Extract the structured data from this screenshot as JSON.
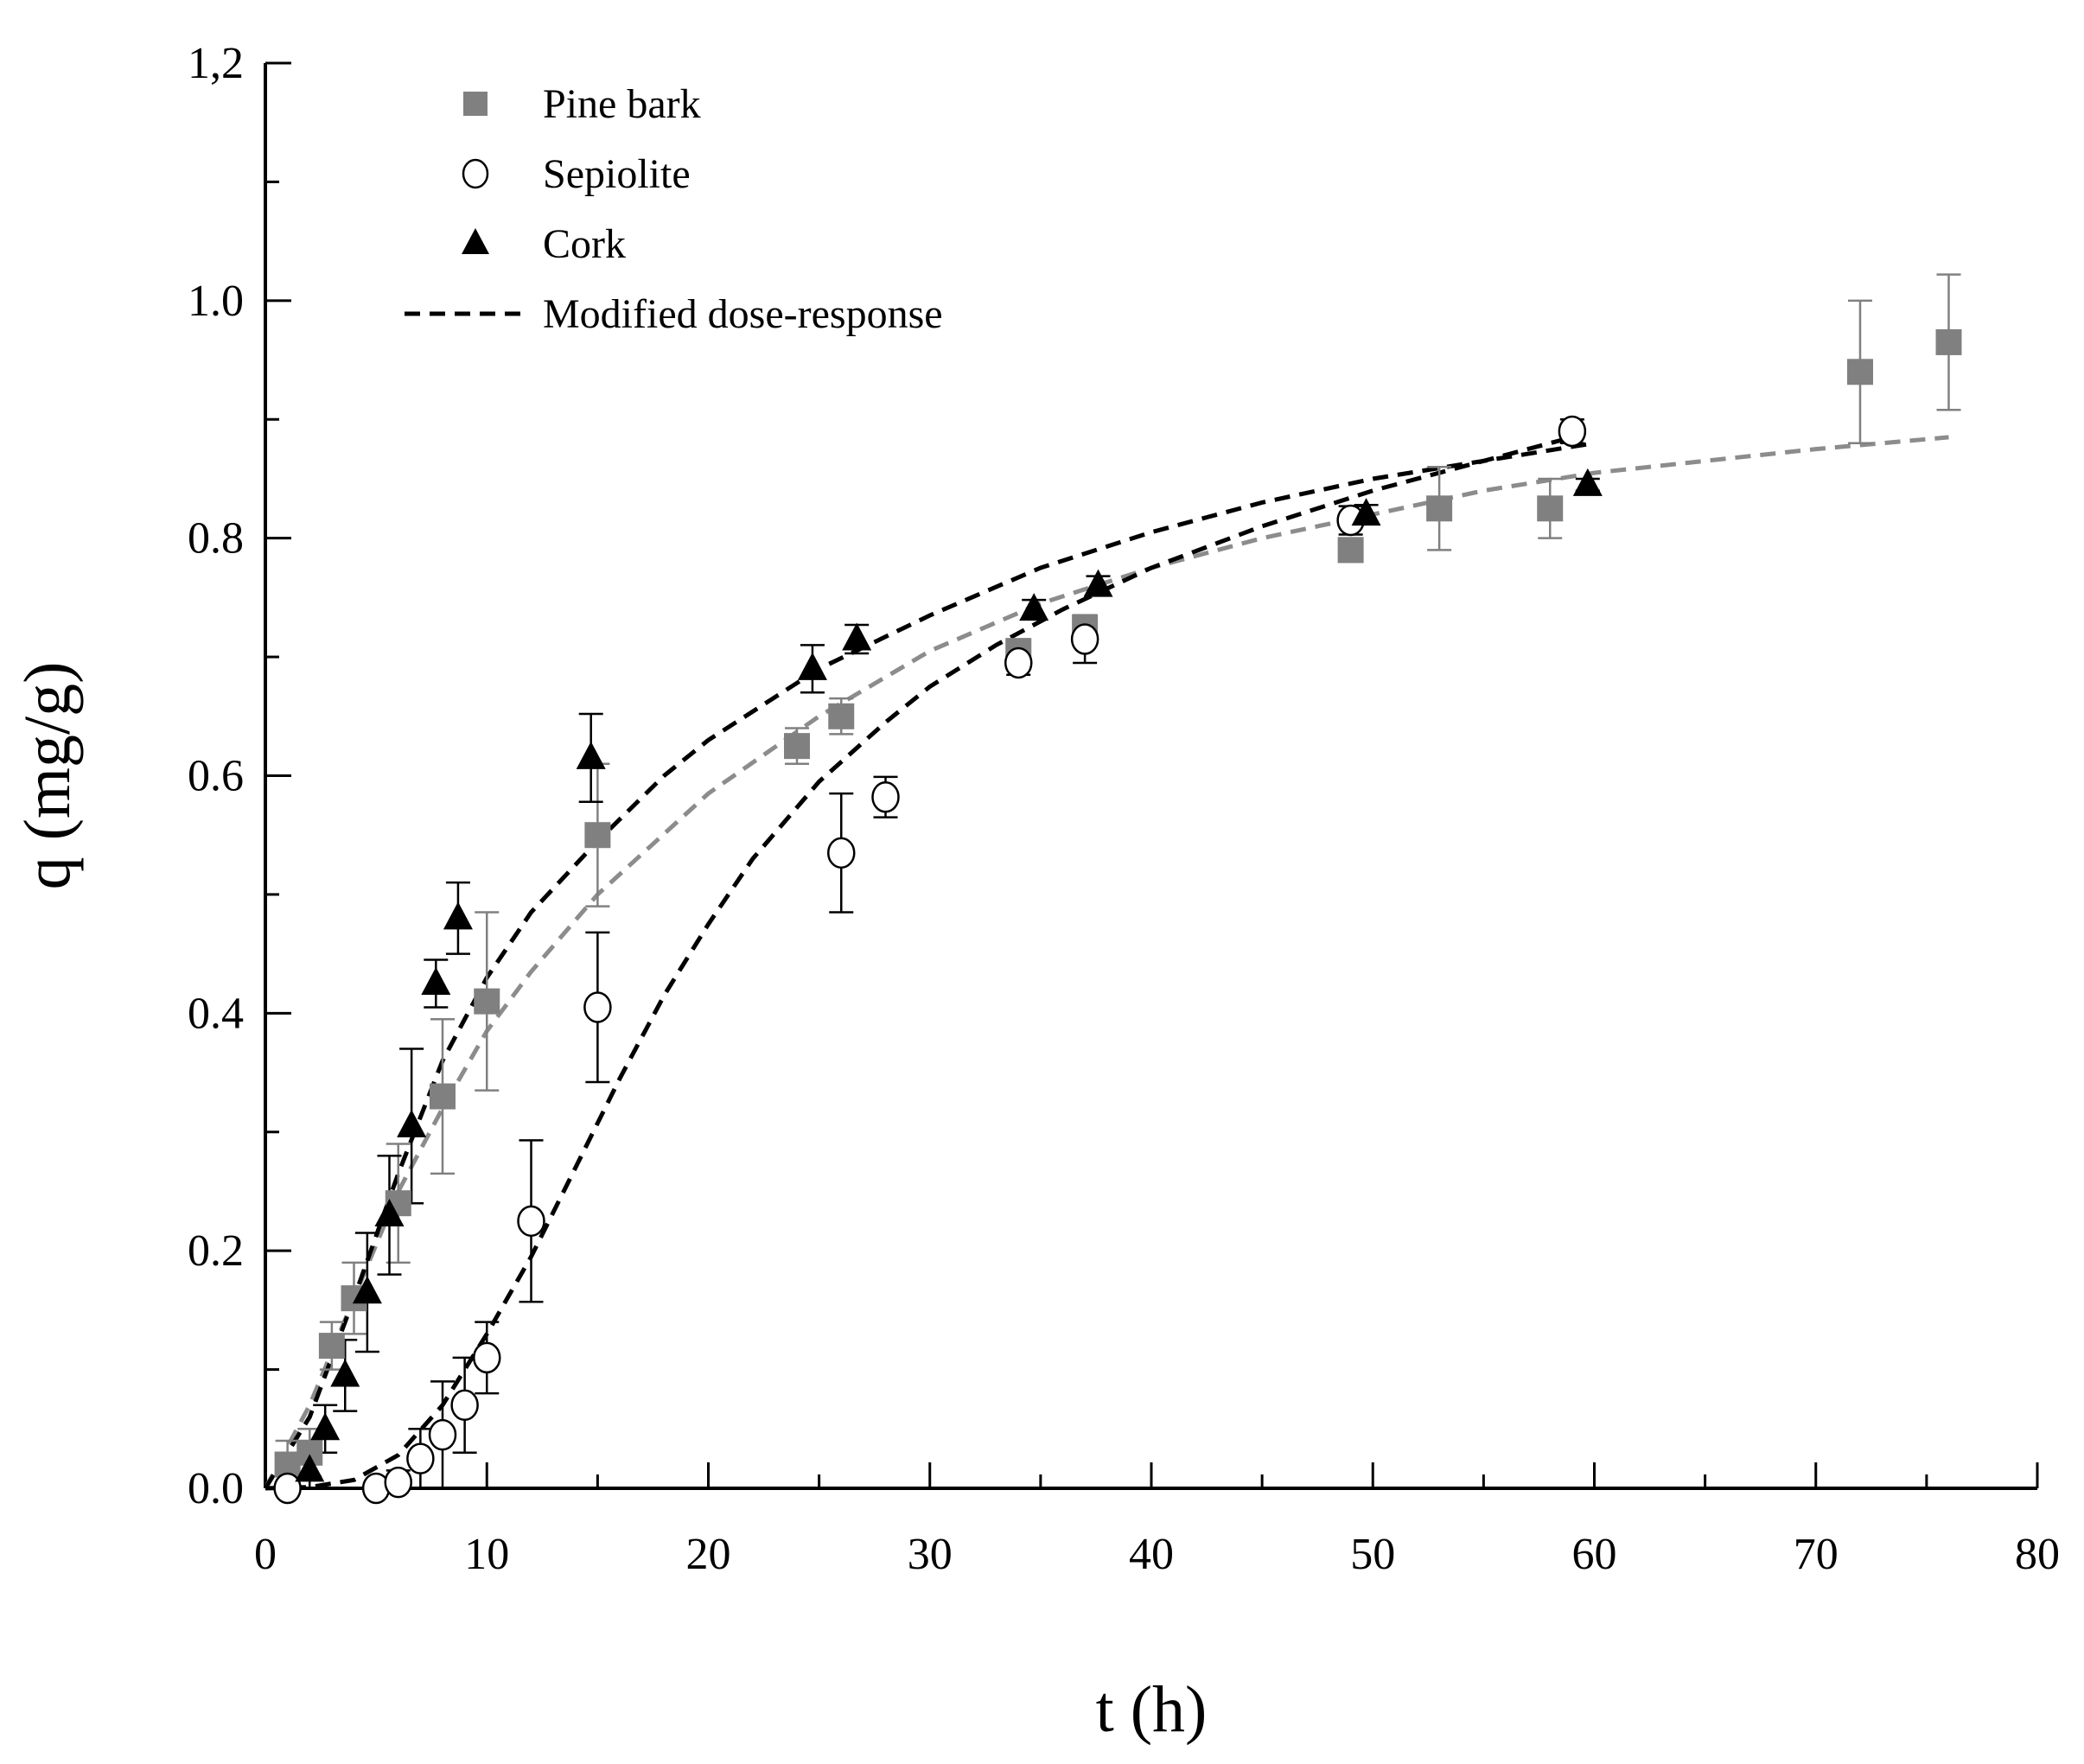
{
  "chart_data": {
    "type": "scatter",
    "title": "",
    "xlabel": "t (h)",
    "ylabel": "q (mg/g)",
    "xlim": [
      0,
      80
    ],
    "ylim": [
      0,
      1.2
    ],
    "x_ticks": [
      "0",
      "10",
      "20",
      "30",
      "40",
      "50",
      "60",
      "70",
      "80"
    ],
    "y_ticks": [
      "0.0",
      "0.2",
      "0.4",
      "0.6",
      "0.8",
      "1.0",
      "1,2"
    ],
    "grid": false,
    "legend_position": "top-left",
    "legend": [
      "Pine bark",
      "Sepiolite",
      "Cork",
      "Modified dose-response"
    ],
    "series": [
      {
        "name": "Pine bark",
        "marker": "square",
        "color": "#808080",
        "points": [
          {
            "x": 1,
            "y": 0.02,
            "err": 0.02
          },
          {
            "x": 2,
            "y": 0.03,
            "err": 0.02
          },
          {
            "x": 3,
            "y": 0.12,
            "err": 0.02
          },
          {
            "x": 4,
            "y": 0.16,
            "err": 0.03
          },
          {
            "x": 6,
            "y": 0.24,
            "err": 0.05
          },
          {
            "x": 8,
            "y": 0.33,
            "err": 0.065
          },
          {
            "x": 10,
            "y": 0.41,
            "err": 0.075
          },
          {
            "x": 15,
            "y": 0.55,
            "err": 0.06
          },
          {
            "x": 24,
            "y": 0.625,
            "err": 0.015
          },
          {
            "x": 26,
            "y": 0.65,
            "err": 0.015
          },
          {
            "x": 34,
            "y": 0.705,
            "err": 0.01
          },
          {
            "x": 37,
            "y": 0.725,
            "err": 0.01
          },
          {
            "x": 49,
            "y": 0.79,
            "err": 0.01
          },
          {
            "x": 53,
            "y": 0.825,
            "err": 0.035
          },
          {
            "x": 58,
            "y": 0.825,
            "err": 0.025
          },
          {
            "x": 72,
            "y": 0.94,
            "err": 0.06
          },
          {
            "x": 76,
            "y": 0.965,
            "err": 0.057
          }
        ]
      },
      {
        "name": "Sepiolite",
        "marker": "circle-open",
        "color": "#000000",
        "points": [
          {
            "x": 1,
            "y": 0.0,
            "err": 0.01
          },
          {
            "x": 5,
            "y": 0.0,
            "err": 0.0
          },
          {
            "x": 6,
            "y": 0.005,
            "err": 0.01
          },
          {
            "x": 7,
            "y": 0.025,
            "err": 0.025
          },
          {
            "x": 8,
            "y": 0.045,
            "err": 0.045
          },
          {
            "x": 9,
            "y": 0.07,
            "err": 0.04
          },
          {
            "x": 10,
            "y": 0.11,
            "err": 0.03
          },
          {
            "x": 12,
            "y": 0.225,
            "err": 0.068
          },
          {
            "x": 15,
            "y": 0.405,
            "err": 0.063
          },
          {
            "x": 26,
            "y": 0.535,
            "err": 0.05
          },
          {
            "x": 28,
            "y": 0.582,
            "err": 0.017
          },
          {
            "x": 34,
            "y": 0.695,
            "err": 0.01
          },
          {
            "x": 37,
            "y": 0.715,
            "err": 0.02
          },
          {
            "x": 49,
            "y": 0.815,
            "err": 0.012
          },
          {
            "x": 59,
            "y": 0.89,
            "err": 0.01
          }
        ]
      },
      {
        "name": "Cork",
        "marker": "triangle",
        "color": "#000000",
        "points": [
          {
            "x": 2,
            "y": 0.015,
            "err": 0.015
          },
          {
            "x": 2.7,
            "y": 0.05,
            "err": 0.02
          },
          {
            "x": 3.6,
            "y": 0.095,
            "err": 0.03
          },
          {
            "x": 4.6,
            "y": 0.165,
            "err": 0.05
          },
          {
            "x": 5.6,
            "y": 0.23,
            "err": 0.05
          },
          {
            "x": 6.6,
            "y": 0.305,
            "err": 0.065
          },
          {
            "x": 7.7,
            "y": 0.425,
            "err": 0.02
          },
          {
            "x": 8.7,
            "y": 0.48,
            "err": 0.03
          },
          {
            "x": 14.7,
            "y": 0.615,
            "err": 0.037
          },
          {
            "x": 24.7,
            "y": 0.69,
            "err": 0.02
          },
          {
            "x": 26.7,
            "y": 0.715,
            "err": 0.012
          },
          {
            "x": 34.7,
            "y": 0.74,
            "err": 0.008
          },
          {
            "x": 37.6,
            "y": 0.76,
            "err": 0.008
          },
          {
            "x": 49.7,
            "y": 0.82,
            "err": 0.008
          },
          {
            "x": 59.7,
            "y": 0.845,
            "err": 0.005
          }
        ]
      }
    ],
    "fits": [
      {
        "name": "Pine bark fit",
        "color": "#8c8c8c",
        "x": [
          0,
          2,
          4,
          6,
          8,
          10,
          12,
          15,
          20,
          25,
          30,
          35,
          40,
          45,
          50,
          55,
          60,
          65,
          70,
          76
        ],
        "y": [
          0,
          0.07,
          0.16,
          0.25,
          0.32,
          0.385,
          0.435,
          0.5,
          0.585,
          0.65,
          0.705,
          0.745,
          0.775,
          0.8,
          0.82,
          0.84,
          0.855,
          0.865,
          0.875,
          0.885
        ]
      },
      {
        "name": "Sepiolite fit",
        "color": "#000000",
        "x": [
          0,
          2,
          4,
          6,
          8,
          10,
          12,
          14,
          16,
          18,
          20,
          22,
          25,
          28,
          30,
          33,
          36,
          40,
          45,
          50,
          55,
          59
        ],
        "y": [
          0,
          0.001,
          0.007,
          0.028,
          0.07,
          0.13,
          0.195,
          0.27,
          0.345,
          0.415,
          0.475,
          0.53,
          0.595,
          0.645,
          0.675,
          0.71,
          0.74,
          0.775,
          0.81,
          0.84,
          0.865,
          0.885
        ]
      },
      {
        "name": "Cork fit",
        "color": "#000000",
        "x": [
          0,
          2,
          4,
          6,
          8,
          10,
          12,
          15,
          18,
          20,
          25,
          30,
          35,
          40,
          45,
          50,
          55,
          60
        ],
        "y": [
          0,
          0.06,
          0.16,
          0.265,
          0.36,
          0.43,
          0.485,
          0.545,
          0.6,
          0.63,
          0.69,
          0.735,
          0.775,
          0.805,
          0.83,
          0.85,
          0.865,
          0.88
        ]
      }
    ]
  }
}
